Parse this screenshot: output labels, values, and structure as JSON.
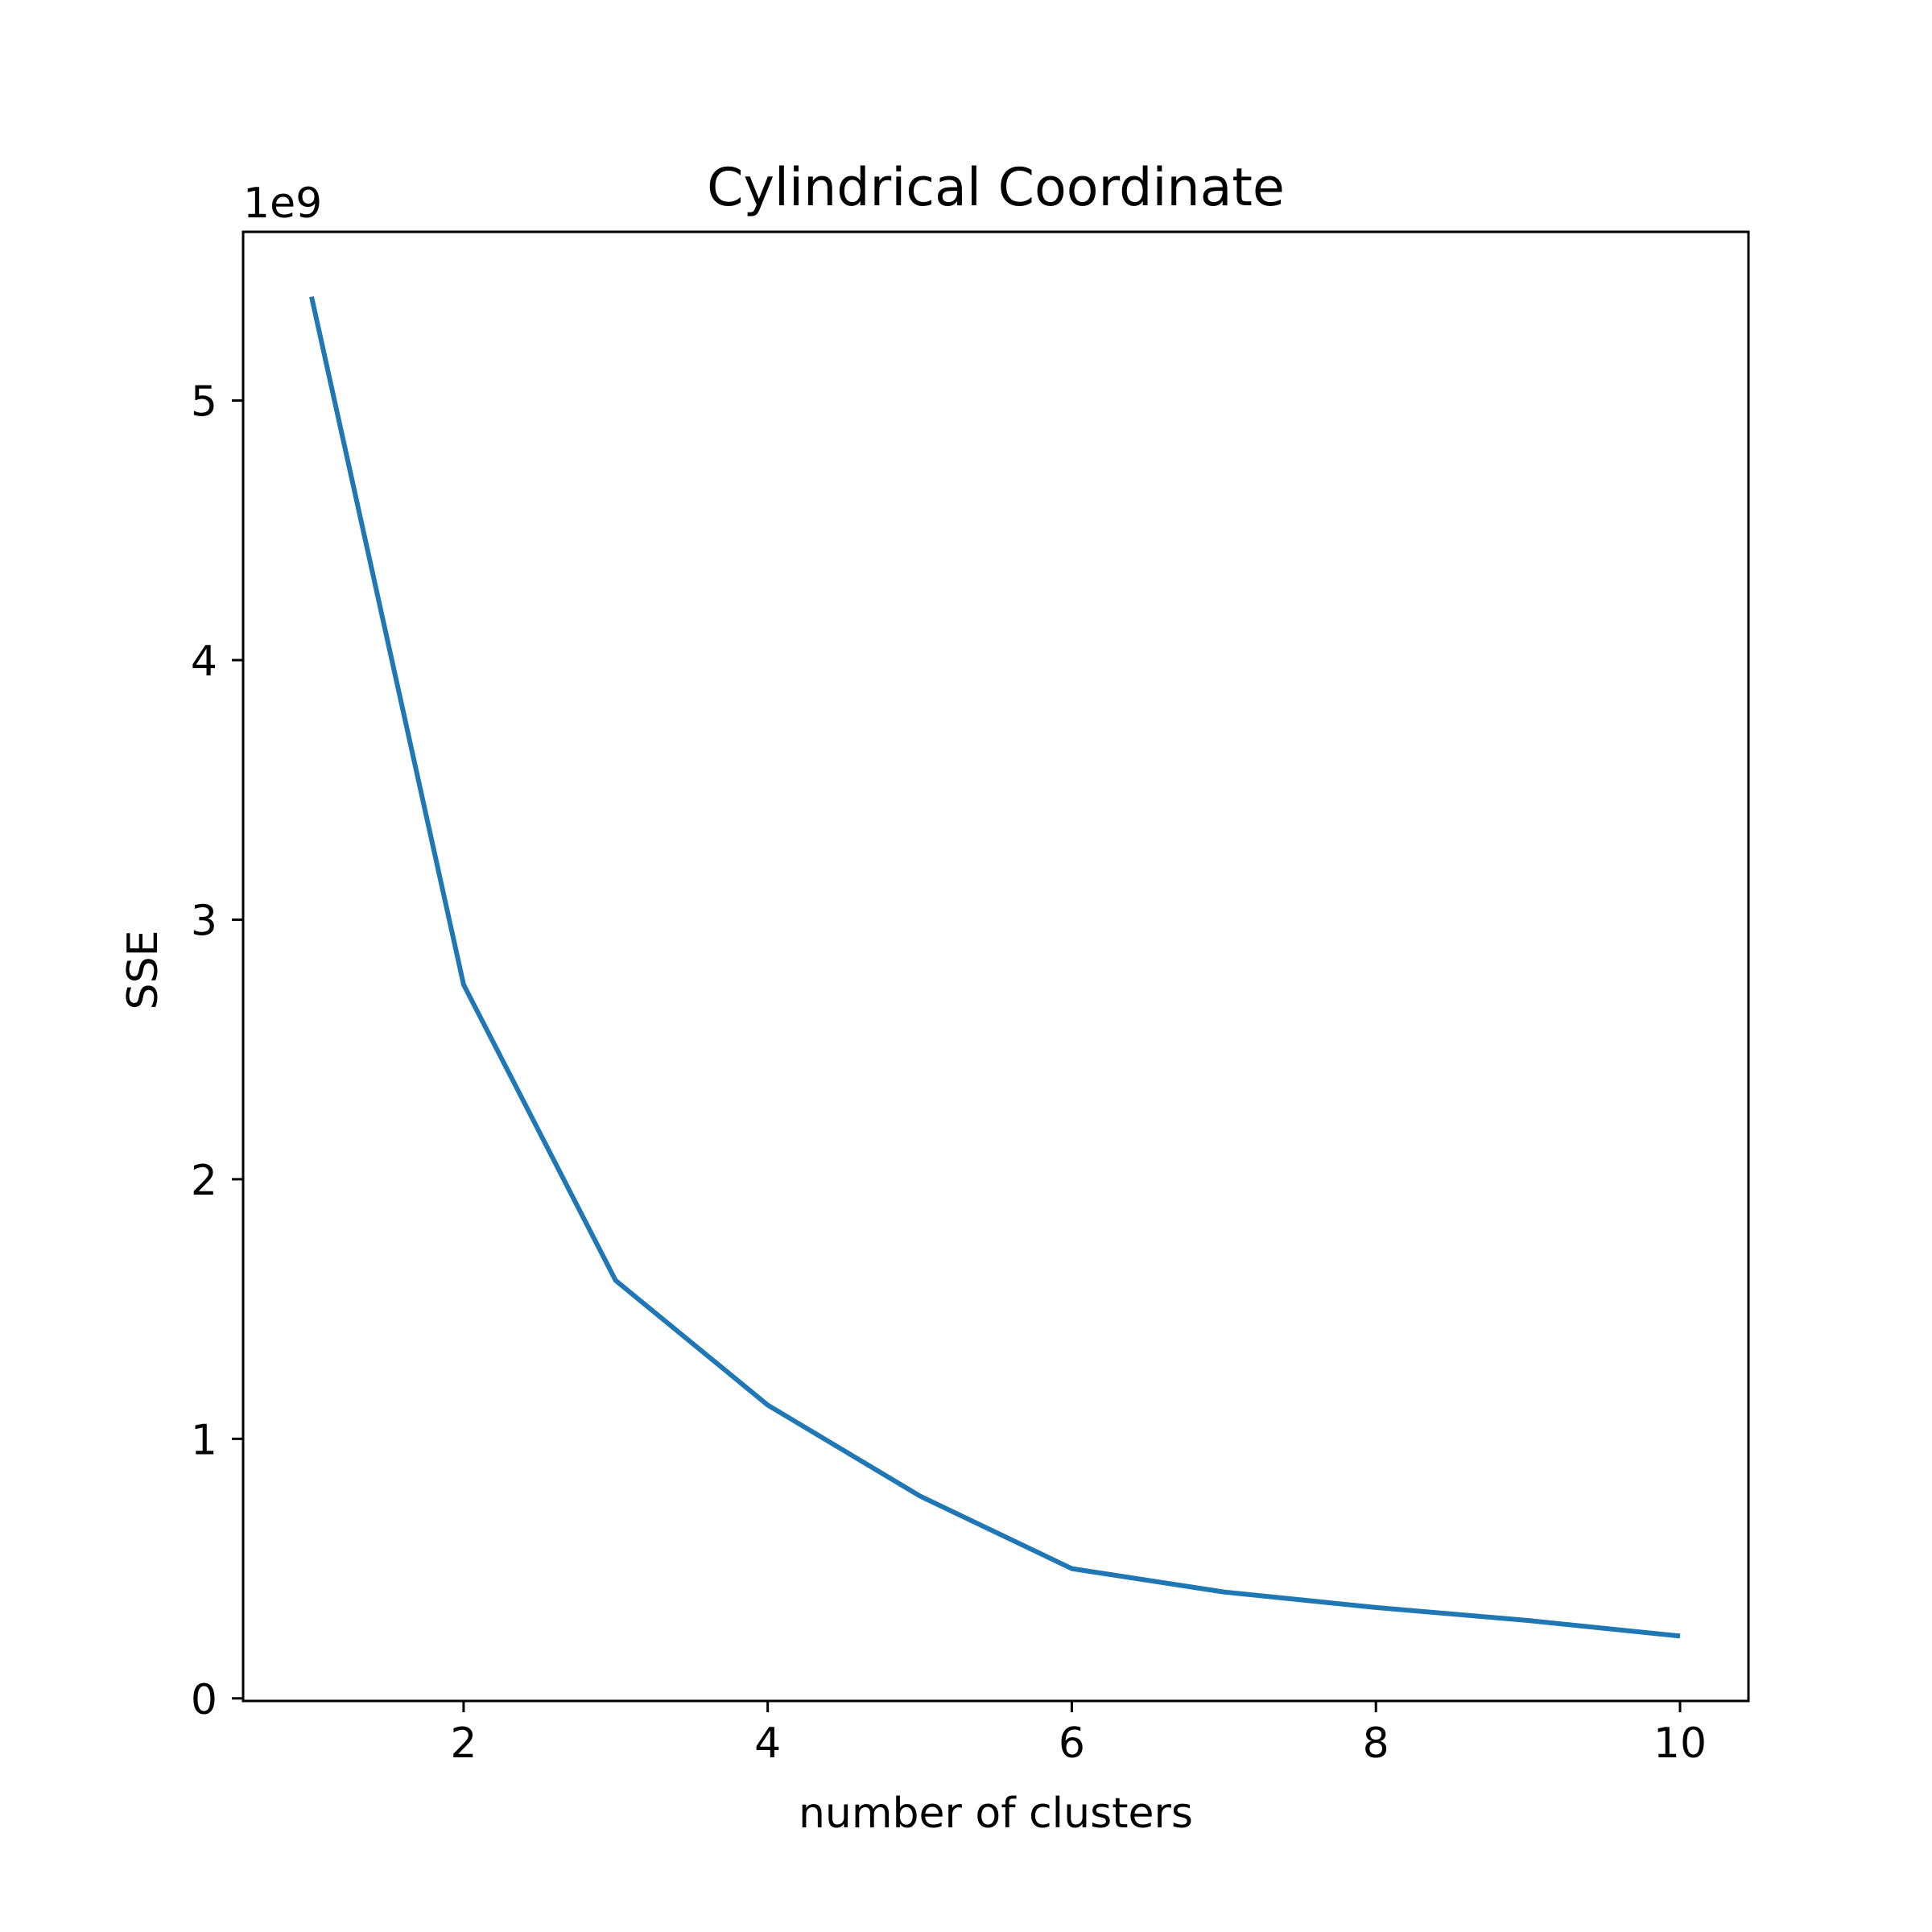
{
  "chart_data": {
    "type": "line",
    "title": "Cylindrical Coordinate",
    "xlabel": "number of clusters",
    "ylabel": "SSE",
    "y_offset_label": "1e9",
    "xlim": [
      0.55,
      10.45
    ],
    "ylim": [
      -0.01,
      5.65
    ],
    "x_ticks": [
      2,
      4,
      6,
      8,
      10
    ],
    "x_tick_labels": [
      "2",
      "4",
      "6",
      "8",
      "10"
    ],
    "y_ticks": [
      0,
      1,
      2,
      3,
      4,
      5
    ],
    "y_tick_labels": [
      "0",
      "1",
      "2",
      "3",
      "4",
      "5"
    ],
    "grid": false,
    "series": [
      {
        "color": "#1f77b4",
        "x": [
          1,
          2,
          3,
          4,
          5,
          6,
          7,
          8,
          9,
          10
        ],
        "y": [
          5.4,
          2.75,
          1.61,
          1.13,
          0.78,
          0.5,
          0.41,
          0.35,
          0.3,
          0.24
        ]
      }
    ]
  }
}
